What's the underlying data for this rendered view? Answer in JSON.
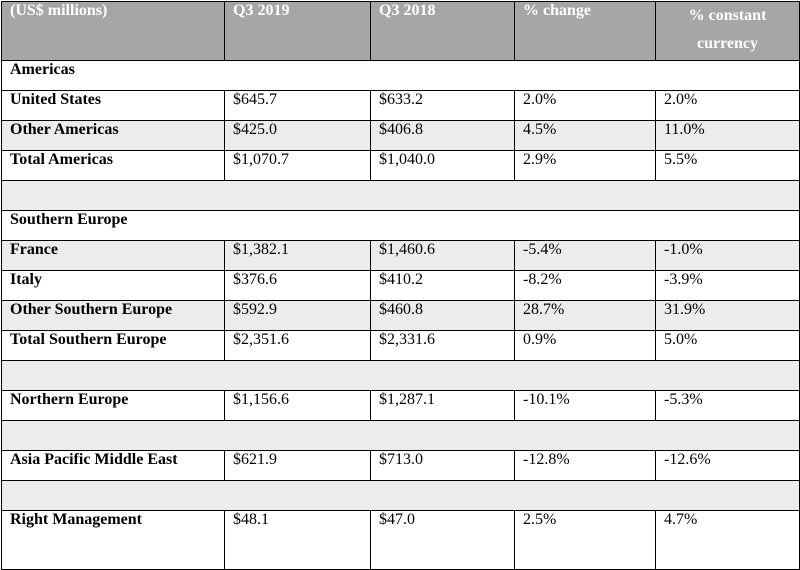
{
  "header": {
    "col0": "(US$ millions)",
    "col1": "Q3 2019",
    "col2": "Q3 2018",
    "col3": "% change",
    "col4_line1": "% constant",
    "col4_line2": "currency"
  },
  "sections": {
    "americas": "Americas",
    "southern_europe": "Southern Europe"
  },
  "rows": {
    "us": [
      "United States",
      "$645.7",
      "$633.2",
      "2.0%",
      "2.0%"
    ],
    "other_americas": [
      "Other Americas",
      "$425.0",
      "$406.8",
      "4.5%",
      "11.0%"
    ],
    "total_americas": [
      "Total Americas",
      "$1,070.7",
      "$1,040.0",
      "2.9%",
      "5.5%"
    ],
    "france": [
      "France",
      "$1,382.1",
      "$1,460.6",
      "-5.4%",
      "-1.0%"
    ],
    "italy": [
      "Italy",
      "$376.6",
      "$410.2",
      "-8.2%",
      "-3.9%"
    ],
    "other_southern_europe": [
      "Other Southern Europe",
      "$592.9",
      "$460.8",
      "28.7%",
      "31.9%"
    ],
    "total_southern_europe": [
      "Total Southern Europe",
      "$2,351.6",
      "$2,331.6",
      "0.9%",
      "5.0%"
    ],
    "northern_europe": [
      "Northern Europe",
      "$1,156.6",
      "$1,287.1",
      "-10.1%",
      "-5.3%"
    ],
    "apme": [
      "Asia Pacific Middle East",
      "$621.9",
      "$713.0",
      "-12.8%",
      "-12.6%"
    ],
    "right_management": [
      "Right Management",
      "$48.1",
      "$47.0",
      "2.5%",
      "4.7%"
    ]
  },
  "colors": {
    "header_bg": "#a6a6a6",
    "header_text": "#ffffff",
    "shaded_row": "#ececec"
  }
}
